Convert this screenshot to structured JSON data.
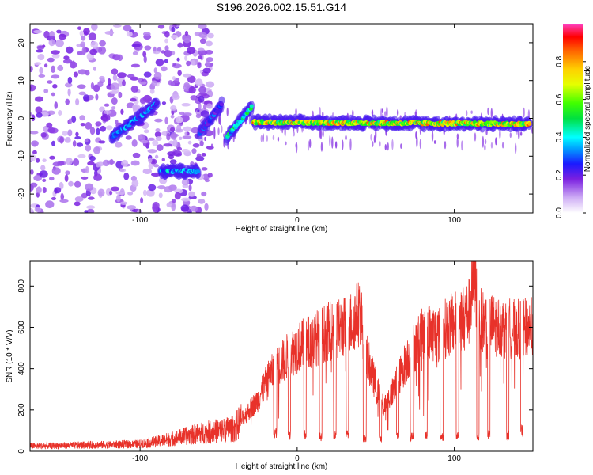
{
  "title": "S196.2026.002.15.51.G14",
  "chart_data": [
    {
      "type": "heatmap",
      "name": "spectrogram",
      "xlabel": "Height of straight line (km)",
      "ylabel": "Frequency (Hz)",
      "xlim": [
        -170,
        150
      ],
      "ylim": [
        -25,
        25
      ],
      "xticks": [
        "-100",
        "0",
        "100"
      ],
      "yticks": [
        "-20",
        "-10",
        "0",
        "10",
        "20"
      ],
      "colorbar": {
        "label": "Normalized spectral amplitude",
        "range": [
          0,
          1
        ],
        "ticks": [
          "0.0",
          "0.2",
          "0.4",
          "0.6",
          "0.8"
        ]
      },
      "track_segments": [
        {
          "x_start": -118,
          "x_end": -89,
          "freq_start": -5,
          "freq_end": 4,
          "amplitude": 0.35
        },
        {
          "x_start": -87,
          "x_end": -63,
          "freq_start": -14,
          "freq_end": -14,
          "amplitude": 0.4
        },
        {
          "x_start": -62,
          "x_end": -48,
          "freq_start": -4,
          "freq_end": 4,
          "amplitude": 0.3
        },
        {
          "x_start": -45,
          "x_end": -29,
          "freq_start": -5,
          "freq_end": 3,
          "amplitude": 0.5
        },
        {
          "x_start": -28,
          "x_end": 148,
          "freq_start": -1,
          "freq_end": -1.5,
          "amplitude": 0.8
        }
      ]
    },
    {
      "type": "line",
      "name": "snr",
      "xlabel": "Height of straight line (km)",
      "ylabel": "SNR (10 * V/V)",
      "xlim": [
        -170,
        150
      ],
      "ylim": [
        0,
        920
      ],
      "xticks": [
        "-100",
        "0",
        "100"
      ],
      "yticks": [
        "0",
        "200",
        "400",
        "600",
        "800"
      ],
      "color": "#e8322a",
      "envelope": {
        "x": [
          -170,
          -100,
          -80,
          -60,
          -40,
          -25,
          -18,
          -10,
          -5,
          0,
          10,
          20,
          30,
          35,
          40,
          45,
          50,
          55,
          60,
          65,
          70,
          75,
          80,
          85,
          90,
          95,
          100,
          105,
          110,
          113,
          115,
          120,
          130,
          140,
          150
        ],
        "y": [
          25,
          35,
          60,
          90,
          110,
          250,
          360,
          430,
          470,
          500,
          540,
          580,
          600,
          630,
          680,
          440,
          320,
          210,
          280,
          360,
          450,
          510,
          560,
          580,
          560,
          600,
          620,
          640,
          680,
          880,
          640,
          620,
          600,
          590,
          600
        ]
      },
      "dropouts": [
        {
          "x": -14,
          "width": 2,
          "level": 90
        },
        {
          "x": -5,
          "width": 1.6,
          "level": 80
        },
        {
          "x": 5,
          "width": 1.6,
          "level": 80
        },
        {
          "x": 15,
          "width": 1.6,
          "level": 70
        },
        {
          "x": 24,
          "width": 1.6,
          "level": 80
        },
        {
          "x": 32,
          "width": 1.6,
          "level": 80
        },
        {
          "x": 43,
          "width": 2,
          "level": 60
        },
        {
          "x": 53,
          "width": 1.6,
          "level": 60
        },
        {
          "x": 64,
          "width": 1.6,
          "level": 80
        },
        {
          "x": 73,
          "width": 2,
          "level": 70
        },
        {
          "x": 82,
          "width": 1.6,
          "level": 80
        },
        {
          "x": 92,
          "width": 2,
          "level": 70
        },
        {
          "x": 102,
          "width": 1.6,
          "level": 80
        },
        {
          "x": 115,
          "width": 1.6,
          "level": 70
        },
        {
          "x": 122,
          "width": 1.6,
          "level": 80
        },
        {
          "x": 134,
          "width": 1.6,
          "level": 80
        },
        {
          "x": 143,
          "width": 1.6,
          "level": 100
        }
      ]
    }
  ]
}
